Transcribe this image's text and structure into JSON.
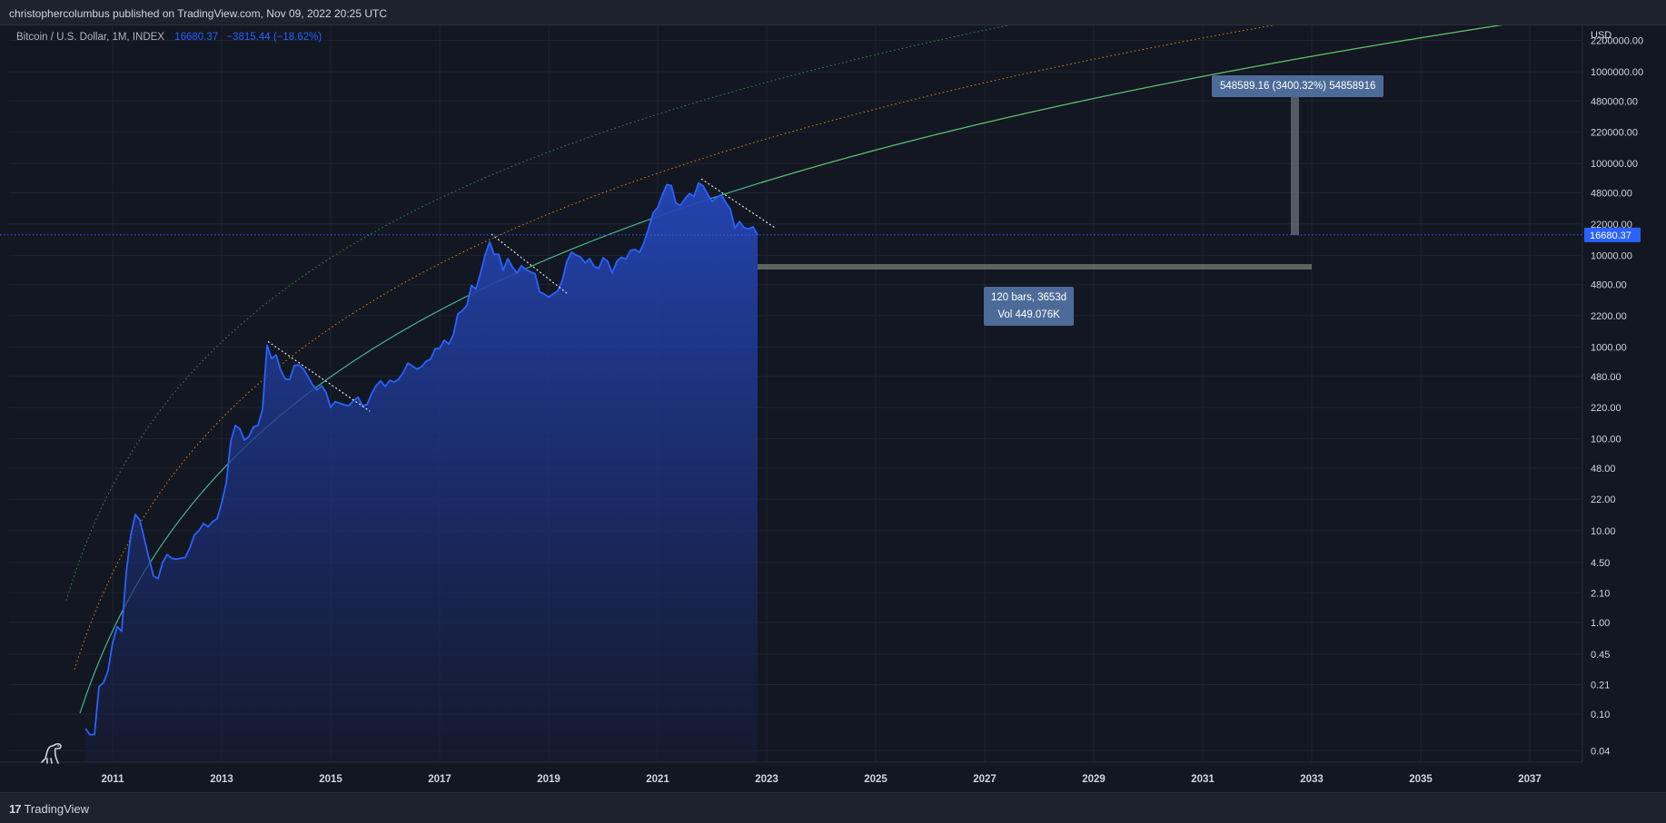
{
  "publish_info": "christophercolumbus published on TradingView.com, Nov 09, 2022 20:25 UTC",
  "legend": {
    "symbol": "Bitcoin / U.S. Dollar, 1M, INDEX",
    "last": "16680.37",
    "change": "−3815.44 (−18.62%)"
  },
  "footer": {
    "brand": "TradingView"
  },
  "colors": {
    "background": "#131722",
    "price_line": "#2962ff",
    "area_fill": "#1e3a8a",
    "curve_outer": "#4caf50",
    "curve_mid": "#ff9800",
    "curve_base": "#4dd0a0",
    "curve_projection": "#5bbf6a"
  },
  "chart_data": {
    "type": "area",
    "title": "",
    "y_scale": "log",
    "y_currency_label": "USD",
    "ylim": [
      0.03,
      3200000
    ],
    "xlim": [
      "2010-06",
      "2038-02"
    ],
    "x_ticks": [
      "2011",
      "2013",
      "2015",
      "2017",
      "2019",
      "2021",
      "2023",
      "2025",
      "2027",
      "2029",
      "2031",
      "2033",
      "2035",
      "2037"
    ],
    "y_ticks": [
      "2200000.00",
      "1000000.00",
      "480000.00",
      "220000.00",
      "100000.00",
      "48000.00",
      "22000.00",
      "10000.00",
      "4800.00",
      "2200.00",
      "1000.00",
      "480.00",
      "220.00",
      "100.00",
      "48.00",
      "22.00",
      "10.00",
      "4.50",
      "2.10",
      "1.00",
      "0.45",
      "0.21",
      "0.10",
      "0.04"
    ],
    "last_price": "16680.37",
    "series": [
      {
        "x": [
          "2010-07",
          "2010-08",
          "2010-09",
          "2010-10",
          "2010-11",
          "2010-12",
          "2011-01",
          "2011-02",
          "2011-03",
          "2011-04",
          "2011-05",
          "2011-06",
          "2011-07",
          "2011-08",
          "2011-09",
          "2011-10",
          "2011-11",
          "2011-12",
          "2012-01",
          "2012-02",
          "2012-03",
          "2012-04",
          "2012-05",
          "2012-06",
          "2012-07",
          "2012-08",
          "2012-09",
          "2012-10",
          "2012-11",
          "2012-12",
          "2013-01",
          "2013-02",
          "2013-03",
          "2013-04",
          "2013-05",
          "2013-06",
          "2013-07",
          "2013-08",
          "2013-09",
          "2013-10",
          "2013-11",
          "2013-12",
          "2014-01",
          "2014-02",
          "2014-03",
          "2014-04",
          "2014-05",
          "2014-06",
          "2014-07",
          "2014-08",
          "2014-09",
          "2014-10",
          "2014-11",
          "2014-12",
          "2015-01",
          "2015-02",
          "2015-03",
          "2015-04",
          "2015-05",
          "2015-06",
          "2015-07",
          "2015-08",
          "2015-09",
          "2015-10",
          "2015-11",
          "2015-12",
          "2016-01",
          "2016-02",
          "2016-03",
          "2016-04",
          "2016-05",
          "2016-06",
          "2016-07",
          "2016-08",
          "2016-09",
          "2016-10",
          "2016-11",
          "2016-12",
          "2017-01",
          "2017-02",
          "2017-03",
          "2017-04",
          "2017-05",
          "2017-06",
          "2017-07",
          "2017-08",
          "2017-09",
          "2017-10",
          "2017-11",
          "2017-12",
          "2018-01",
          "2018-02",
          "2018-03",
          "2018-04",
          "2018-05",
          "2018-06",
          "2018-07",
          "2018-08",
          "2018-09",
          "2018-10",
          "2018-11",
          "2018-12",
          "2019-01",
          "2019-02",
          "2019-03",
          "2019-04",
          "2019-05",
          "2019-06",
          "2019-07",
          "2019-08",
          "2019-09",
          "2019-10",
          "2019-11",
          "2019-12",
          "2020-01",
          "2020-02",
          "2020-03",
          "2020-04",
          "2020-05",
          "2020-06",
          "2020-07",
          "2020-08",
          "2020-09",
          "2020-10",
          "2020-11",
          "2020-12",
          "2021-01",
          "2021-02",
          "2021-03",
          "2021-04",
          "2021-05",
          "2021-06",
          "2021-07",
          "2021-08",
          "2021-09",
          "2021-10",
          "2021-11",
          "2021-12",
          "2022-01",
          "2022-02",
          "2022-03",
          "2022-04",
          "2022-05",
          "2022-06",
          "2022-07",
          "2022-08",
          "2022-09",
          "2022-10",
          "2022-11"
        ],
        "values": [
          0.07,
          0.06,
          0.06,
          0.2,
          0.22,
          0.3,
          0.6,
          0.9,
          0.8,
          3.5,
          9,
          15,
          13,
          8,
          5,
          3.2,
          3,
          4.5,
          5.5,
          5,
          4.9,
          5,
          5.1,
          6.5,
          9,
          10,
          12,
          11,
          12.5,
          13.5,
          20,
          33,
          93,
          140,
          129,
          97,
          106,
          135,
          140,
          210,
          1050,
          750,
          820,
          560,
          450,
          445,
          630,
          640,
          580,
          480,
          390,
          340,
          380,
          320,
          220,
          255,
          245,
          235,
          230,
          260,
          285,
          230,
          236,
          310,
          380,
          430,
          370,
          435,
          415,
          450,
          530,
          670,
          620,
          575,
          610,
          700,
          740,
          960,
          970,
          1190,
          1080,
          1350,
          2300,
          2500,
          2850,
          4700,
          4300,
          6400,
          10000,
          14000,
          10200,
          10300,
          6900,
          9200,
          7500,
          6400,
          7700,
          7000,
          6600,
          6300,
          4000,
          3800,
          3500,
          3800,
          4100,
          5300,
          8600,
          10800,
          10100,
          9600,
          8300,
          9200,
          7600,
          7200,
          9400,
          8600,
          6400,
          8600,
          9500,
          9100,
          11300,
          11600,
          10800,
          13800,
          19700,
          29000,
          33100,
          45200,
          58900,
          57700,
          37300,
          35000,
          41400,
          47100,
          43800,
          61300,
          57000,
          46300,
          38500,
          43200,
          45500,
          37700,
          31800,
          19800,
          23300,
          20000,
          19400,
          20500,
          16680
        ]
      }
    ],
    "annotations": {
      "price_range_label": "548589.16 (3400.32%) 54858916",
      "bars_range_label": "120 bars, 3653d",
      "volume_label": "Vol 449.076K"
    }
  }
}
